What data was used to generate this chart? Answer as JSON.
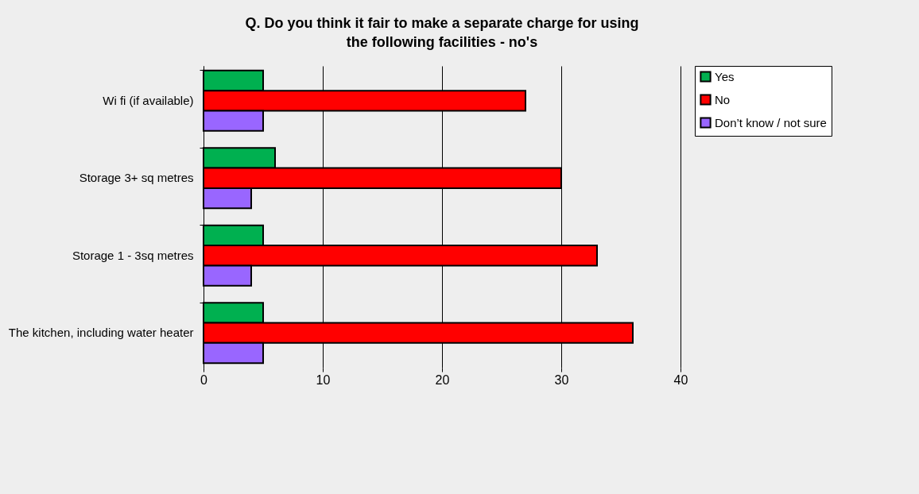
{
  "chart_data": {
    "type": "bar",
    "orientation": "horizontal",
    "title": "Q. Do you think it fair to make a separate charge for using the following facilities - no's",
    "categories": [
      "Wi fi (if available)",
      "Storage 3+ sq metres",
      "Storage 1 - 3sq metres",
      "The kitchen, including water heater"
    ],
    "series": [
      {
        "name": "Yes",
        "color": "#00b050",
        "values": [
          5,
          6,
          5,
          5
        ]
      },
      {
        "name": "No",
        "color": "#ff0000",
        "values": [
          27,
          30,
          33,
          36
        ]
      },
      {
        "name": "Don’t know / not sure",
        "color": "#9966ff",
        "values": [
          5,
          4,
          4,
          5
        ]
      }
    ],
    "xlim": [
      0,
      40
    ],
    "xticks": [
      0,
      10,
      20,
      30,
      40
    ],
    "grid": "x",
    "legend": "top right"
  }
}
